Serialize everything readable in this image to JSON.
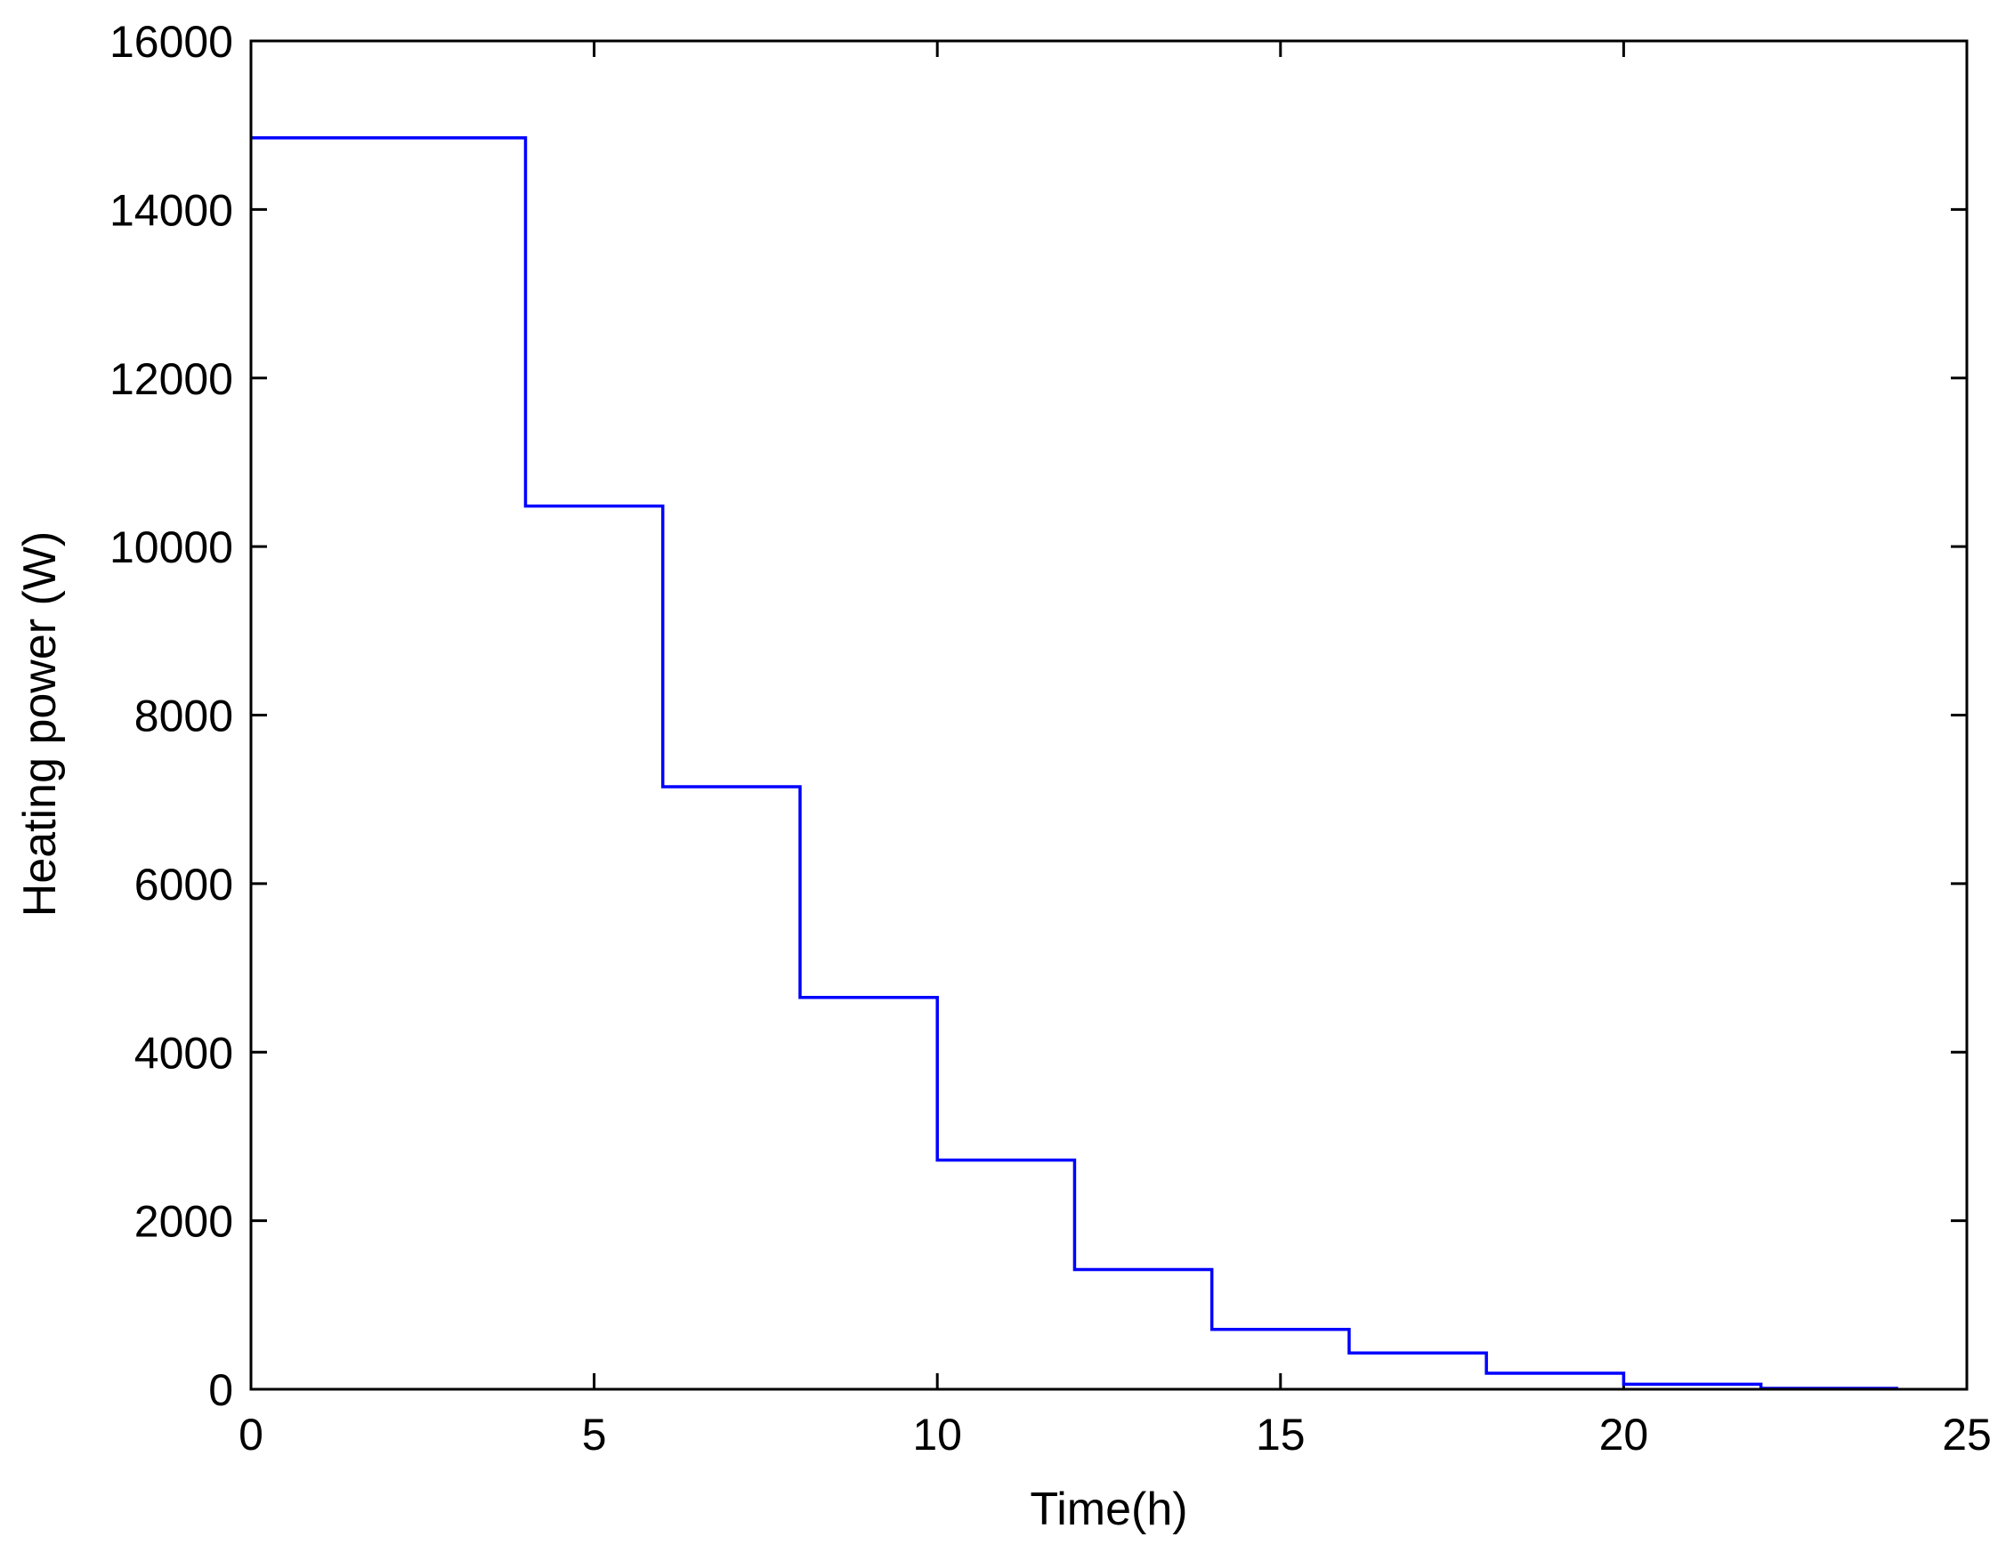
{
  "chart_data": {
    "type": "line",
    "step": true,
    "title": "",
    "xlabel": "Time(h)",
    "ylabel": "Heating power (W)",
    "xlim": [
      0,
      25
    ],
    "ylim": [
      0,
      16000
    ],
    "xticks": [
      0,
      5,
      10,
      15,
      20,
      25
    ],
    "yticks": [
      0,
      2000,
      4000,
      6000,
      8000,
      10000,
      12000,
      14000,
      16000
    ],
    "xtick_labels": [
      "0",
      "5",
      "10",
      "15",
      "20",
      "25"
    ],
    "ytick_labels": [
      "0",
      "2000",
      "4000",
      "6000",
      "8000",
      "10000",
      "12000",
      "14000",
      "16000"
    ],
    "grid": false,
    "legend": "none",
    "line_color": "#0000ff",
    "series": [
      {
        "x": [
          0,
          4,
          6,
          8,
          10,
          12,
          14,
          16,
          18,
          20,
          22,
          24
        ],
        "values": [
          14850,
          10480,
          7150,
          4650,
          2720,
          1420,
          710,
          430,
          190,
          60,
          10,
          10
        ]
      }
    ]
  }
}
